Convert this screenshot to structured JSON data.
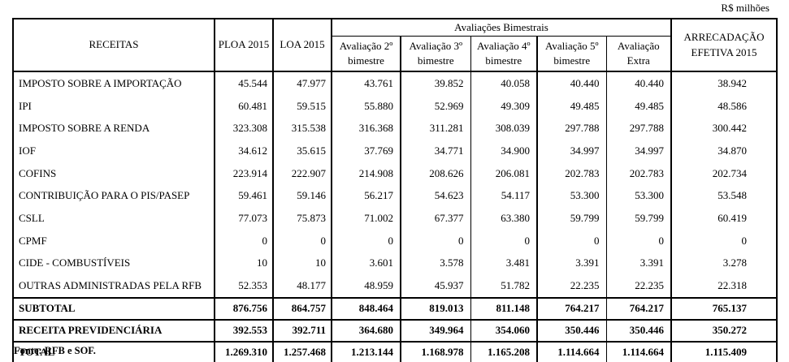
{
  "unit_label": "R$ milhões",
  "source_note": "Fonte: RFB e SOF.",
  "colors": {
    "background": "#ffffff",
    "border": "#000000",
    "text": "#000000"
  },
  "table": {
    "headers": {
      "receitas": "RECEITAS",
      "ploa": "PLOA 2015",
      "loa": "LOA 2015",
      "group": "Avaliações Bimestrais",
      "avaliacoes": [
        "Avaliação 2º bimestre",
        "Avaliação 3º bimestre",
        "Avaliação 4º bimestre",
        "Avaliação 5º bimestre",
        "Avaliação Extra"
      ],
      "arrecadacao": "ARRECADAÇÃO EFETIVA 2015"
    },
    "rows": [
      {
        "label": "IMPOSTO SOBRE A IMPORTAÇÃO",
        "values": [
          "45.544",
          "47.977",
          "43.761",
          "39.852",
          "40.058",
          "40.440",
          "40.440",
          "38.942"
        ]
      },
      {
        "label": "IPI",
        "values": [
          "60.481",
          "59.515",
          "55.880",
          "52.969",
          "49.309",
          "49.485",
          "49.485",
          "48.586"
        ]
      },
      {
        "label": "IMPOSTO SOBRE A RENDA",
        "values": [
          "323.308",
          "315.538",
          "316.368",
          "311.281",
          "308.039",
          "297.788",
          "297.788",
          "300.442"
        ]
      },
      {
        "label": "IOF",
        "values": [
          "34.612",
          "35.615",
          "37.769",
          "34.771",
          "34.900",
          "34.997",
          "34.997",
          "34.870"
        ]
      },
      {
        "label": "COFINS",
        "values": [
          "223.914",
          "222.907",
          "214.908",
          "208.626",
          "206.081",
          "202.783",
          "202.783",
          "202.734"
        ]
      },
      {
        "label": "CONTRIBUIÇÃO PARA O PIS/PASEP",
        "values": [
          "59.461",
          "59.146",
          "56.217",
          "54.623",
          "54.117",
          "53.300",
          "53.300",
          "53.548"
        ]
      },
      {
        "label": "CSLL",
        "values": [
          "77.073",
          "75.873",
          "71.002",
          "67.377",
          "63.380",
          "59.799",
          "59.799",
          "60.419"
        ]
      },
      {
        "label": "CPMF",
        "values": [
          "0",
          "0",
          "0",
          "0",
          "0",
          "0",
          "0",
          "0"
        ]
      },
      {
        "label": "CIDE - COMBUSTÍVEIS",
        "values": [
          "10",
          "10",
          "3.601",
          "3.578",
          "3.481",
          "3.391",
          "3.391",
          "3.278"
        ]
      },
      {
        "label": "OUTRAS ADMINISTRADAS PELA RFB",
        "values": [
          "52.353",
          "48.177",
          "48.959",
          "45.937",
          "51.782",
          "22.235",
          "22.235",
          "22.318"
        ]
      }
    ],
    "total_rows": [
      {
        "label": "SUBTOTAL",
        "values": [
          "876.756",
          "864.757",
          "848.464",
          "819.013",
          "811.148",
          "764.217",
          "764.217",
          "765.137"
        ]
      },
      {
        "label": "RECEITA PREVIDENCIÁRIA",
        "values": [
          "392.553",
          "392.711",
          "364.680",
          "349.964",
          "354.060",
          "350.446",
          "350.446",
          "350.272"
        ]
      },
      {
        "label": "TOTAL",
        "values": [
          "1.269.310",
          "1.257.468",
          "1.213.144",
          "1.168.978",
          "1.165.208",
          "1.114.664",
          "1.114.664",
          "1.115.409"
        ]
      }
    ]
  }
}
